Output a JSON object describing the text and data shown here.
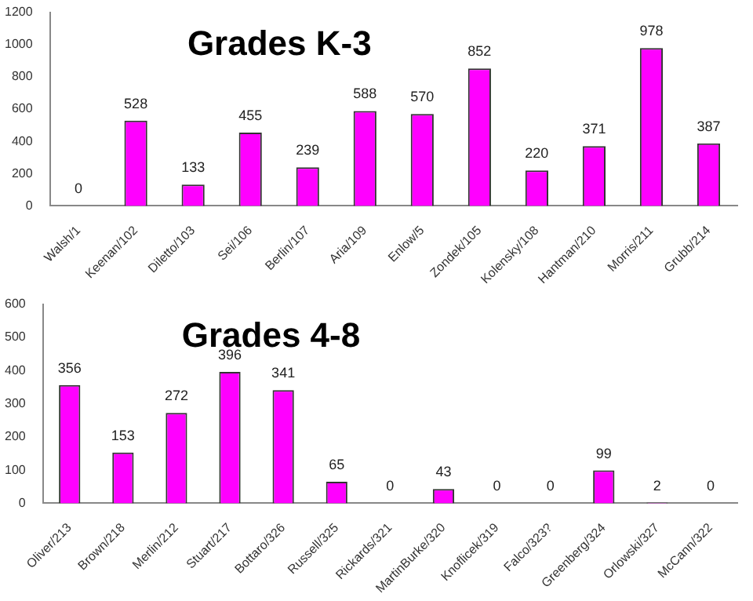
{
  "chart_data": [
    {
      "type": "bar",
      "title": "Grades K-3",
      "categories": [
        "Walsh/1",
        "Keenan/102",
        "Diletto/103",
        "Sei/106",
        "Berlin/107",
        "Aria/109",
        "Enlow/5",
        "Zondek/105",
        "Kolensky/108",
        "Hantman/210",
        "Morris/211",
        "Grubb/214"
      ],
      "values": [
        0,
        528,
        133,
        455,
        239,
        588,
        570,
        852,
        220,
        371,
        978,
        387
      ],
      "color": "#ff00ff",
      "ylim": [
        0,
        1200
      ],
      "yticks": [
        0,
        200,
        400,
        600,
        800,
        1000,
        1200
      ],
      "data_labels": true
    },
    {
      "type": "bar",
      "title": "Grades 4-8",
      "categories": [
        "Oliver/213",
        "Brown/218",
        "Merlin/212",
        "Stuart/217",
        "Bottaro/326",
        "Russell/325",
        "Rickards/321",
        "MartinBurke/320",
        "Knoflicek/319",
        "Falco/323?",
        "Greenberg/324",
        "Orlowski/327",
        "McCann/322"
      ],
      "values": [
        356,
        153,
        272,
        396,
        341,
        65,
        0,
        43,
        0,
        0,
        99,
        2,
        0
      ],
      "color": "#ff00ff",
      "ylim": [
        0,
        600
      ],
      "yticks": [
        0,
        100,
        200,
        300,
        400,
        500,
        600
      ],
      "data_labels": true
    }
  ]
}
